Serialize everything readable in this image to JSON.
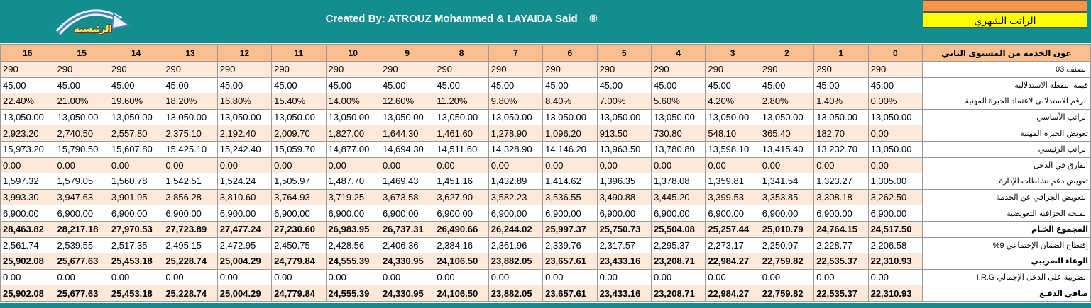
{
  "banner": {
    "credit": "Created By: ATROUZ Mohammed & LAYAIDA Said__®",
    "home_button": "الرئيسية",
    "sheet_title": "الراتب الشهري"
  },
  "table": {
    "header": [
      "عون الخدمة من المستوى الثاني",
      0,
      1,
      2,
      3,
      4,
      5,
      6,
      7,
      8,
      9,
      10,
      11,
      12,
      13,
      14,
      15,
      16
    ],
    "rows": [
      [
        "الصنف  03",
        290,
        290,
        290,
        290,
        290,
        290,
        290,
        290,
        290,
        290,
        290,
        290,
        290,
        290,
        290,
        290,
        290
      ],
      [
        "قيمة النقطة الاستدلالية",
        "45.00",
        "45.00",
        "45.00",
        "45.00",
        "45.00",
        "45.00",
        "45.00",
        "45.00",
        "45.00",
        "45.00",
        "45.00",
        "45.00",
        "45.00",
        "45.00",
        "45.00",
        "45.00",
        "45.00"
      ],
      [
        "الرقم الاستدلالي لاعتماد الخبرة المهنية",
        "0.00%",
        "1.40%",
        "2.80%",
        "4.20%",
        "5.60%",
        "7.00%",
        "8.40%",
        "9.80%",
        "11.20%",
        "12.60%",
        "14.00%",
        "15.40%",
        "16.80%",
        "18.20%",
        "19.60%",
        "21.00%",
        "22.40%"
      ],
      [
        "الراتب الأساسي",
        "13,050.00",
        "13,050.00",
        "13,050.00",
        "13,050.00",
        "13,050.00",
        "13,050.00",
        "13,050.00",
        "13,050.00",
        "13,050.00",
        "13,050.00",
        "13,050.00",
        "13,050.00",
        "13,050.00",
        "13,050.00",
        "13,050.00",
        "13,050.00",
        "13,050.00"
      ],
      [
        "تعويض الخبرة المهنية",
        "0.00",
        "182.70",
        "365.40",
        "548.10",
        "730.80",
        "913.50",
        "1,096.20",
        "1,278.90",
        "1,461.60",
        "1,644.30",
        "1,827.00",
        "2,009.70",
        "2,192.40",
        "2,375.10",
        "2,557.80",
        "2,740.50",
        "2,923.20"
      ],
      [
        "الراتب الرئيسي",
        "13,050.00",
        "13,232.70",
        "13,415.40",
        "13,598.10",
        "13,780.80",
        "13,963.50",
        "14,146.20",
        "14,328.90",
        "14,511.60",
        "14,694.30",
        "14,877.00",
        "15,059.70",
        "15,242.40",
        "15,425.10",
        "15,607.80",
        "15,790.50",
        "15,973.20"
      ],
      [
        "الفارق في الدخل",
        "0.00",
        "0.00",
        "0.00",
        "0.00",
        "0.00",
        "0.00",
        "0.00",
        "0.00",
        "0.00",
        "0.00",
        "0.00",
        "0.00",
        "0.00",
        "0.00",
        "0.00",
        "0.00",
        "0.00"
      ],
      [
        "تعويض دعم نشاطات الإدارة",
        "1,305.00",
        "1,323.27",
        "1,341.54",
        "1,359.81",
        "1,378.08",
        "1,396.35",
        "1,414.62",
        "1,432.89",
        "1,451.16",
        "1,469.43",
        "1,487.70",
        "1,505.97",
        "1,524.24",
        "1,542.51",
        "1,560.78",
        "1,579.05",
        "1,597.32"
      ],
      [
        "التعويض الجزافي عن الخدمة",
        "3,262.50",
        "3,308.18",
        "3,353.85",
        "3,399.53",
        "3,445.20",
        "3,490.88",
        "3,536.55",
        "3,582.23",
        "3,627.90",
        "3,673.58",
        "3,719.25",
        "3,764.93",
        "3,810.60",
        "3,856.28",
        "3,901.95",
        "3,947.63",
        "3,993.30"
      ],
      [
        "المنحة الجزافية التعويضية",
        "6,900.00",
        "6,900.00",
        "6,900.00",
        "6,900.00",
        "6,900.00",
        "6,900.00",
        "6,900.00",
        "6,900.00",
        "6,900.00",
        "6,900.00",
        "6,900.00",
        "6,900.00",
        "6,900.00",
        "6,900.00",
        "6,900.00",
        "6,900.00",
        "6,900.00"
      ],
      [
        "المجموع الخـام",
        "24,517.50",
        "24,764.15",
        "25,010.79",
        "25,257.44",
        "25,504.08",
        "25,750.73",
        "25,997.37",
        "26,244.02",
        "26,490.66",
        "26,737.31",
        "26,983.95",
        "27,230.60",
        "27,477.24",
        "27,723.89",
        "27,970.53",
        "28,217.18",
        "28,463.82"
      ],
      [
        "إقتطاع الضمان الإجتماعي 9%",
        "2,206.58",
        "2,228.77",
        "2,250.97",
        "2,273.17",
        "2,295.37",
        "2,317.57",
        "2,339.76",
        "2,361.96",
        "2,384.16",
        "2,406.36",
        "2,428.56",
        "2,450.75",
        "2,472.95",
        "2,495.15",
        "2,517.35",
        "2,539.55",
        "2,561.74"
      ],
      [
        "الوعاء الضريبي",
        "22,310.93",
        "22,535.37",
        "22,759.82",
        "22,984.27",
        "23,208.71",
        "23,433.16",
        "23,657.61",
        "23,882.05",
        "24,106.50",
        "24,330.95",
        "24,555.39",
        "24,779.84",
        "25,004.29",
        "25,228.74",
        "25,453.18",
        "25,677.63",
        "25,902.08"
      ],
      [
        "الضريبة على الدخل الإجمالي I.R.G",
        "0.00",
        "0.00",
        "0.00",
        "0.00",
        "0.00",
        "0.00",
        "0.00",
        "0.00",
        "0.00",
        "0.00",
        "0.00",
        "0.00",
        "0.00",
        "0.00",
        "0.00",
        "0.00",
        "0.00"
      ],
      [
        "صافي الدفـع",
        "22,310.93",
        "22,535.37",
        "22,759.82",
        "22,984.27",
        "23,208.71",
        "23,433.16",
        "23,657.61",
        "23,882.05",
        "24,106.50",
        "24,330.95",
        "24,555.39",
        "24,779.84",
        "25,004.29",
        "25,228.74",
        "25,453.18",
        "25,677.63",
        "25,902.08"
      ]
    ]
  }
}
